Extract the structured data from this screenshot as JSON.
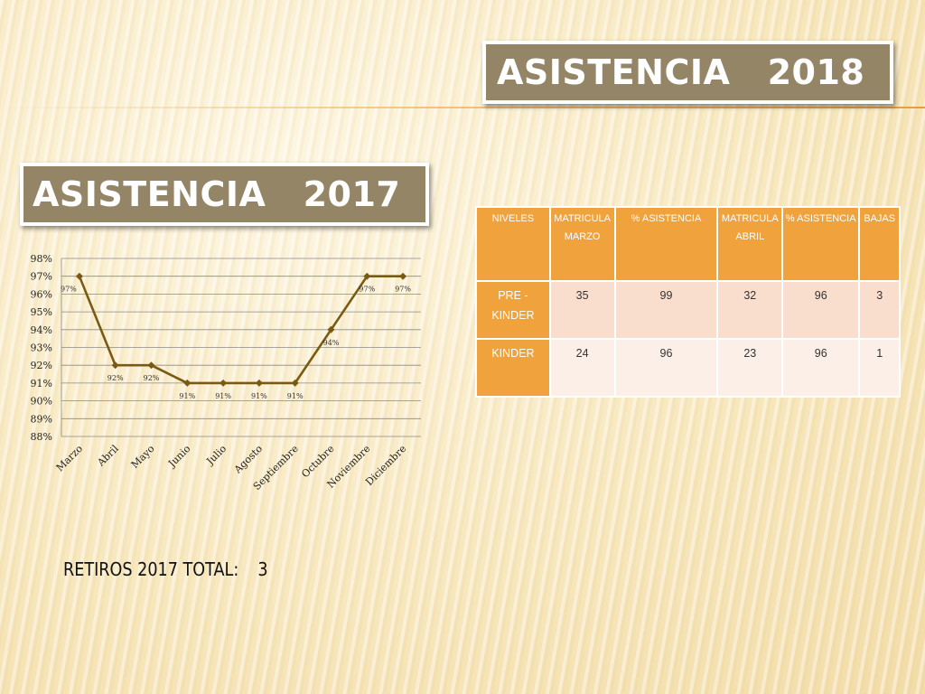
{
  "titles": {
    "t2018": "ASISTENCIA   2018",
    "t2017": "ASISTENCIA   2017"
  },
  "chart_data": {
    "type": "line",
    "categories": [
      "Marzo",
      "Abril",
      "Mayo",
      "Junio",
      "Julio",
      "Agosto",
      "Septiembre",
      "Octubre",
      "Noviembre",
      "Diciembre"
    ],
    "series": [
      {
        "values": [
          97,
          92,
          92,
          91,
          91,
          91,
          91,
          94,
          97,
          97
        ]
      }
    ],
    "data_labels": [
      "97%",
      "92%",
      "92%",
      "91%",
      "91%",
      "91%",
      "91%",
      "94%",
      "97%",
      "97%"
    ],
    "ylim": [
      88,
      98
    ],
    "yticks": [
      "98%",
      "97%",
      "96%",
      "95%",
      "94%",
      "93%",
      "92%",
      "91%",
      "90%",
      "89%",
      "88%"
    ],
    "grid": true,
    "line_color": "#7a5a12",
    "title": "",
    "xlabel": "",
    "ylabel": ""
  },
  "table": {
    "headers": [
      "NIVELES",
      "MATRICULA MARZO",
      "% ASISTENCIA",
      "MATRICULA ABRIL",
      "% ASISTENCIA",
      "BAJAS"
    ],
    "rows": [
      [
        "PRE - KINDER",
        "35",
        "99",
        "32",
        "96",
        "3"
      ],
      [
        "KINDER",
        "24",
        "96",
        "23",
        "96",
        "1"
      ]
    ]
  },
  "retiros": {
    "label": "RETIROS 2017 TOTAL:",
    "value": "3"
  },
  "colors": {
    "title_bg": "#948567",
    "table_header": "#f0a33c",
    "row1": "#f9ddcd",
    "row2": "#fcefe8"
  }
}
